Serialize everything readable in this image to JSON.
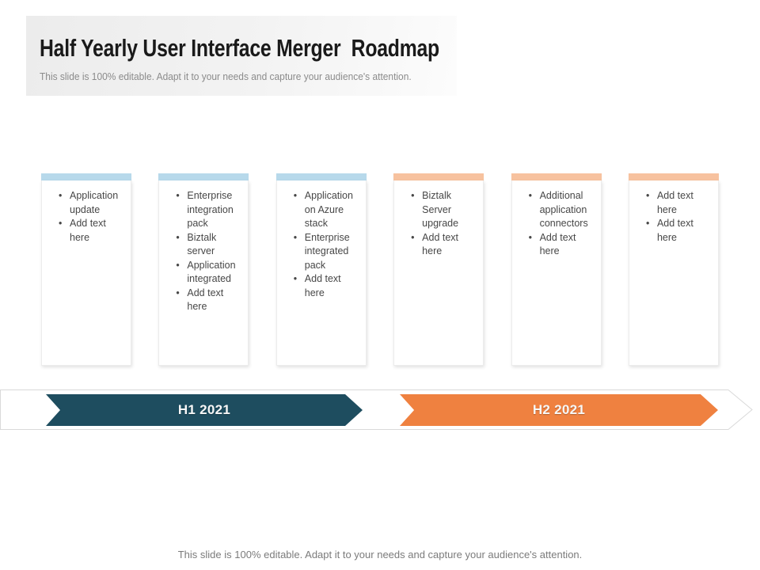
{
  "slide": {
    "title": "Half Yearly User Interface Merger  Roadmap",
    "subtitle": "This slide is 100% editable. Adapt it to your needs and capture your audience's attention.",
    "footer": "This slide is 100% editable. Adapt it to your needs and capture your audience's attention."
  },
  "colors": {
    "blue_bar": "#b7d9eb",
    "orange_bar": "#f7c29f",
    "h1_arrow": "#1e4d5f",
    "h2_arrow": "#ef8140",
    "band_border": "#d9d9d9"
  },
  "cards": [
    {
      "accent": "blue",
      "items": [
        "Application update",
        "Add text here"
      ]
    },
    {
      "accent": "blue",
      "items": [
        "Enterprise integration pack",
        "Biztalk server",
        "Application integrated",
        "Add text here"
      ]
    },
    {
      "accent": "blue",
      "items": [
        "Application on Azure stack",
        "Enterprise integrated pack",
        "Add text here"
      ]
    },
    {
      "accent": "orange",
      "items": [
        "Biztalk Server upgrade",
        "Add text here"
      ]
    },
    {
      "accent": "orange",
      "items": [
        "Additional application connectors",
        "Add text here"
      ]
    },
    {
      "accent": "orange",
      "items": [
        "Add text here",
        "Add text here"
      ]
    }
  ],
  "timeline": [
    {
      "label": "H1 2021",
      "color": "#1e4d5f"
    },
    {
      "label": "H2 2021",
      "color": "#ef8140"
    }
  ]
}
